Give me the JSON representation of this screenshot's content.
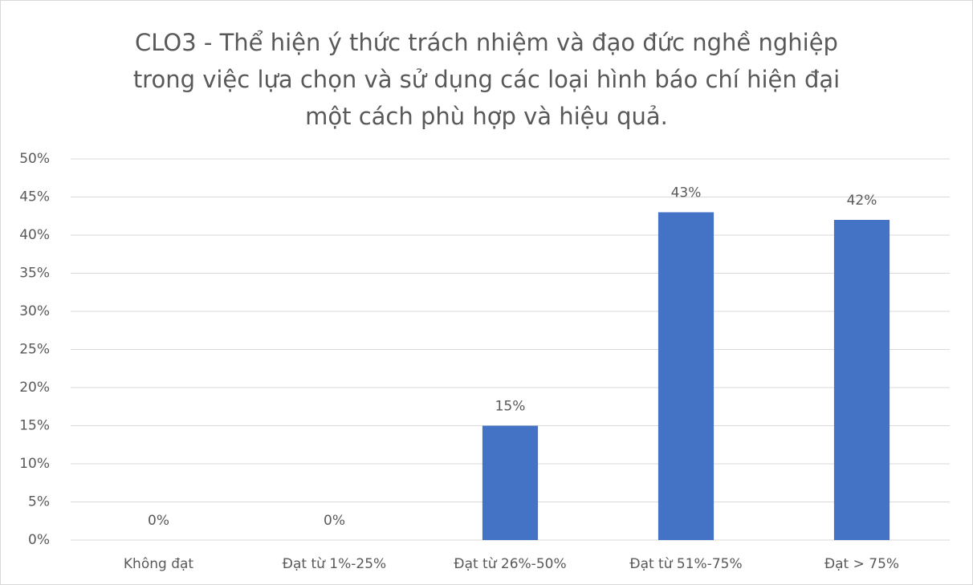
{
  "chart_data": {
    "type": "bar",
    "title": [
      "CLO3 - Thể hiện ý thức trách nhiệm và đạo đức nghề nghiệp",
      "trong việc lựa chọn và sử dụng các loại hình báo chí hiện đại",
      "một cách phù hợp và hiệu quả."
    ],
    "categories": [
      "Không đạt",
      "Đạt từ 1%-25%",
      "Đạt từ 26%-50%",
      "Đạt từ 51%-75%",
      "Đạt > 75%"
    ],
    "values": [
      0,
      0,
      15,
      43,
      42
    ],
    "value_labels": [
      "0%",
      "0%",
      "15%",
      "43%",
      "42%"
    ],
    "color": "#4472c4",
    "ylim": [
      0,
      50
    ],
    "yticks": [
      {
        "value": 0,
        "label": "0%"
      },
      {
        "value": 5,
        "label": "5%"
      },
      {
        "value": 10,
        "label": "10%"
      },
      {
        "value": 15,
        "label": "15%"
      },
      {
        "value": 20,
        "label": "20%"
      },
      {
        "value": 25,
        "label": "25%"
      },
      {
        "value": 30,
        "label": "30%"
      },
      {
        "value": 35,
        "label": "35%"
      },
      {
        "value": 40,
        "label": "40%"
      },
      {
        "value": 45,
        "label": "45%"
      },
      {
        "value": 50,
        "label": "50%"
      }
    ],
    "grid": true
  }
}
